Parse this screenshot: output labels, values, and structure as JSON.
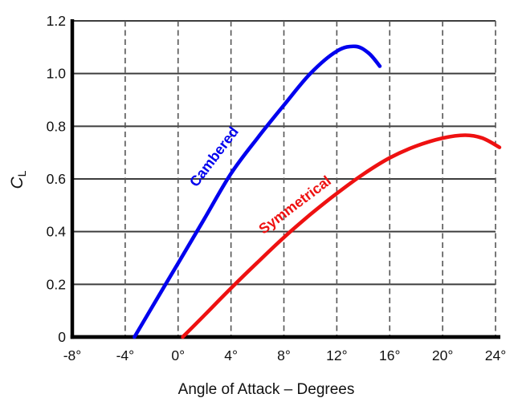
{
  "chart_data": {
    "type": "line",
    "title": "",
    "xlabel": "Angle of Attack – Degrees",
    "ylabel": "CL",
    "ylabel_rich": {
      "base": "C",
      "subscript": "L"
    },
    "xlim": [
      -8,
      24
    ],
    "ylim": [
      0,
      1.2
    ],
    "x_ticks": [
      {
        "value": -8,
        "label": "-8°"
      },
      {
        "value": -4,
        "label": "-4°"
      },
      {
        "value": 0,
        "label": "0°"
      },
      {
        "value": 4,
        "label": "4°"
      },
      {
        "value": 8,
        "label": "8°"
      },
      {
        "value": 12,
        "label": "12°"
      },
      {
        "value": 16,
        "label": "16°"
      },
      {
        "value": 20,
        "label": "20°"
      },
      {
        "value": 24,
        "label": "24°"
      }
    ],
    "y_ticks": [
      {
        "value": 0,
        "label": "0"
      },
      {
        "value": 0.2,
        "label": "0.2"
      },
      {
        "value": 0.4,
        "label": "0.4"
      },
      {
        "value": 0.6,
        "label": "0.6"
      },
      {
        "value": 0.8,
        "label": "0.8"
      },
      {
        "value": 1.0,
        "label": "1.0"
      },
      {
        "value": 1.2,
        "label": "1.2"
      }
    ],
    "grid": {
      "horizontal_style": "solid",
      "vertical_style": "dashed",
      "horizontal_color": "#3d3d3d",
      "vertical_color": "#555555"
    },
    "axis_color": "#000000",
    "legend_position": "labels-along-curves",
    "series": [
      {
        "name": "Cambered",
        "color": "#0000ee",
        "points": [
          [
            -3.3,
            0
          ],
          [
            -1.5,
            0.153
          ],
          [
            0,
            0.28
          ],
          [
            2,
            0.45
          ],
          [
            4,
            0.62
          ],
          [
            6,
            0.755
          ],
          [
            8,
            0.88
          ],
          [
            10,
            1.0
          ],
          [
            12,
            1.085
          ],
          [
            13.4,
            1.103
          ],
          [
            14.4,
            1.078
          ],
          [
            15.25,
            1.028
          ]
        ],
        "label": {
          "text": "Cambered",
          "x": 3.0,
          "y": 0.673,
          "rotation": -53
        }
      },
      {
        "name": "Symmetrical",
        "color": "#ee1111",
        "points": [
          [
            0.35,
            0
          ],
          [
            2,
            0.083
          ],
          [
            4,
            0.185
          ],
          [
            6,
            0.283
          ],
          [
            8,
            0.378
          ],
          [
            10,
            0.465
          ],
          [
            12,
            0.545
          ],
          [
            14,
            0.618
          ],
          [
            16,
            0.68
          ],
          [
            18,
            0.725
          ],
          [
            20,
            0.755
          ],
          [
            21.7,
            0.766
          ],
          [
            23,
            0.755
          ],
          [
            24.3,
            0.72
          ]
        ],
        "label": {
          "text": "Symmetrical",
          "x": 9.05,
          "y": 0.487,
          "rotation": -37
        }
      }
    ]
  }
}
